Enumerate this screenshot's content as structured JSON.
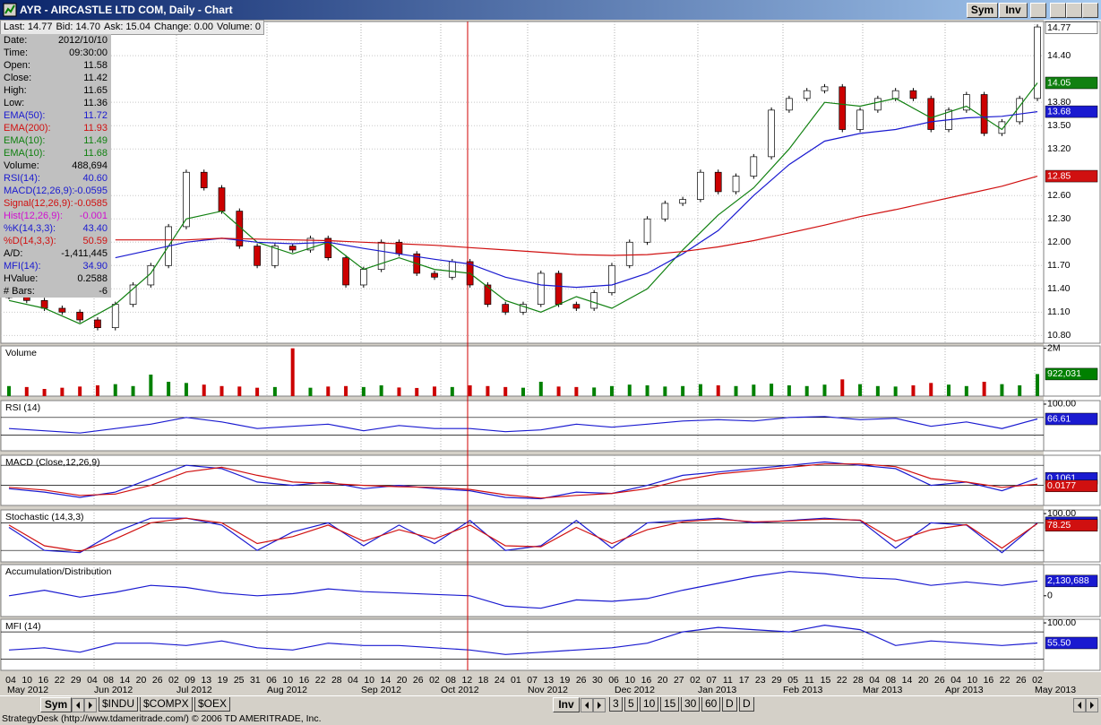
{
  "window": {
    "title": "AYR - AIRCASTLE LTD COM, Daily - Chart",
    "buttons": [
      "Sym",
      "Inv"
    ]
  },
  "quote": [
    "Last: 14.77",
    "Bid: 14.70",
    "Ask: 15.04",
    "Change: 0.00",
    "Volume: 0"
  ],
  "data_window": [
    {
      "label": "Date:",
      "value": "2012/10/10",
      "color": "#000000"
    },
    {
      "label": "Time:",
      "value": "09:30:00",
      "color": "#000000"
    },
    {
      "label": "Open:",
      "value": "11.58",
      "color": "#000000"
    },
    {
      "label": "Close:",
      "value": "11.42",
      "color": "#000000"
    },
    {
      "label": "High:",
      "value": "11.65",
      "color": "#000000"
    },
    {
      "label": "Low:",
      "value": "11.36",
      "color": "#000000"
    },
    {
      "label": "EMA(50):",
      "value": "11.72",
      "color": "#1a1ad0"
    },
    {
      "label": "EMA(200):",
      "value": "11.93",
      "color": "#d01010"
    },
    {
      "label": "EMA(10):",
      "value": "11.49",
      "color": "#108010"
    },
    {
      "label": "EMA(10):",
      "value": "11.68",
      "color": "#108010"
    },
    {
      "label": "Volume:",
      "value": "488,694",
      "color": "#000000"
    },
    {
      "label": "RSI(14):",
      "value": "40.60",
      "color": "#1a1ad0"
    },
    {
      "label": "MACD(12,26,9):",
      "value": "-0.0595",
      "color": "#1a1ad0"
    },
    {
      "label": "Signal(12,26,9):",
      "value": "-0.0585",
      "color": "#d01010"
    },
    {
      "label": "Hist(12,26,9):",
      "value": "-0.001",
      "color": "#d010d0"
    },
    {
      "label": "%K(14,3,3):",
      "value": "43.40",
      "color": "#1a1ad0"
    },
    {
      "label": "%D(14,3,3):",
      "value": "50.59",
      "color": "#d01010"
    },
    {
      "label": "A/D:",
      "value": "-1,411,445",
      "color": "#000000"
    },
    {
      "label": "MFI(14):",
      "value": "34.90",
      "color": "#1a1ad0"
    },
    {
      "label": "HValue:",
      "value": "0.2588",
      "color": "#000000"
    },
    {
      "label": "# Bars:",
      "value": "-6",
      "color": "#000000"
    }
  ],
  "chart_data": [
    {
      "type": "candlestick",
      "ylim": [
        10.7,
        14.84
      ],
      "up_color": "#ffffff",
      "down_color": "#cc0000",
      "yticks": [
        {
          "value": 14.4,
          "label": "14.40"
        },
        {
          "value": 13.8,
          "label": "13.80"
        },
        {
          "value": 13.5,
          "label": "13.50"
        },
        {
          "value": 13.2,
          "label": "13.20"
        },
        {
          "value": 12.6,
          "label": "12.60"
        },
        {
          "value": 12.3,
          "label": "12.30"
        },
        {
          "value": 12.0,
          "label": "12.00"
        },
        {
          "value": 11.7,
          "label": "11.70"
        },
        {
          "value": 11.4,
          "label": "11.40"
        },
        {
          "value": 11.1,
          "label": "11.10"
        },
        {
          "value": 10.8,
          "label": "10.80"
        }
      ],
      "values": [
        11.3,
        11.25,
        11.15,
        11.1,
        11.0,
        10.9,
        11.2,
        11.45,
        11.7,
        12.2,
        12.9,
        12.7,
        12.4,
        11.95,
        11.7,
        11.95,
        11.9,
        12.05,
        11.8,
        11.45,
        11.65,
        12.0,
        11.85,
        11.6,
        11.55,
        11.75,
        11.45,
        11.2,
        11.1,
        11.2,
        11.6,
        11.2,
        11.15,
        11.35,
        11.7,
        12.0,
        12.3,
        12.5,
        12.55,
        12.9,
        12.65,
        12.85,
        13.1,
        13.7,
        13.85,
        13.95,
        14.0,
        13.45,
        13.7,
        13.85,
        13.95,
        13.85,
        13.45,
        13.7,
        13.9,
        13.4,
        13.55,
        13.85,
        14.77
      ],
      "series": [
        {
          "color": "#108010",
          "values": [
            11.25,
            11.15,
            10.95,
            11.2,
            11.6,
            12.3,
            12.4,
            12.0,
            11.85,
            12.0,
            11.65,
            11.8,
            11.65,
            11.6,
            11.25,
            11.1,
            11.3,
            11.15,
            11.4,
            11.9,
            12.35,
            12.7,
            13.2,
            13.8,
            13.75,
            13.85,
            13.6,
            13.75,
            13.45,
            14.05
          ]
        },
        {
          "color": "#1a1ad0",
          "values": [
            null,
            null,
            null,
            11.8,
            11.9,
            12.0,
            12.05,
            12.0,
            11.98,
            12.0,
            11.92,
            11.85,
            11.78,
            11.72,
            11.55,
            11.45,
            11.42,
            11.45,
            11.6,
            11.85,
            12.15,
            12.6,
            13.0,
            13.3,
            13.4,
            13.45,
            13.55,
            13.6,
            13.62,
            13.68
          ]
        },
        {
          "color": "#d01010",
          "values": [
            null,
            null,
            null,
            12.03,
            12.03,
            12.03,
            12.05,
            12.04,
            12.03,
            12.02,
            12.0,
            11.98,
            11.96,
            11.93,
            11.9,
            11.87,
            11.84,
            11.83,
            11.84,
            11.88,
            11.94,
            12.02,
            12.12,
            12.22,
            12.33,
            12.42,
            12.52,
            12.62,
            12.72,
            12.85
          ]
        }
      ]
    },
    {
      "type": "bar",
      "title": "Volume",
      "ylim": [
        0,
        2100000
      ],
      "yticks": [
        {
          "value": 2000000,
          "label": "2M"
        }
      ],
      "up_color": "#008000",
      "down_color": "#cc0000",
      "values": [
        420000,
        380000,
        300000,
        350000,
        400000,
        450000,
        500000,
        420000,
        900000,
        600000,
        550000,
        480000,
        420000,
        400000,
        350000,
        380000,
        2000000,
        350000,
        400000,
        420000,
        380000,
        450000,
        360000,
        340000,
        400000,
        380000,
        450000,
        420000,
        380000,
        350000,
        600000,
        400000,
        380000,
        360000,
        420000,
        480000,
        450000,
        400000,
        420000,
        500000,
        450000,
        420000,
        480000,
        520000,
        450000,
        420000,
        480000,
        700000,
        500000,
        420000,
        400000,
        450000,
        550000,
        480000,
        420000,
        600000,
        500000,
        450000,
        922031
      ],
      "value_labels": [
        null,
        null,
        null,
        null,
        null,
        null,
        null,
        null,
        null,
        null,
        null,
        null,
        null,
        null,
        null,
        null,
        null,
        null,
        null,
        null,
        null,
        null,
        null,
        null,
        null,
        null,
        null,
        null,
        null,
        null,
        null,
        null,
        null,
        null,
        null,
        null,
        null,
        null,
        null,
        null,
        null,
        null,
        null,
        null,
        null,
        null,
        null,
        null,
        null,
        null,
        null,
        null,
        null,
        null,
        null,
        null,
        null,
        null,
        "922,031"
      ]
    },
    {
      "type": "line",
      "title": "RSI (14)",
      "ylim": [
        -5,
        108
      ],
      "yticks": [
        {
          "value": 100,
          "label": "100.00"
        }
      ],
      "levels": [
        30,
        70
      ],
      "series": [
        {
          "color": "#1a1ad0",
          "values": [
            45,
            40,
            35,
            45,
            55,
            70,
            60,
            45,
            50,
            55,
            40,
            52,
            45,
            45,
            38,
            42,
            55,
            48,
            55,
            62,
            65,
            62,
            70,
            72,
            65,
            68,
            50,
            60,
            45,
            66.61
          ]
        }
      ]
    },
    {
      "type": "line",
      "title": "MACD (Close,12,26,9)",
      "ylim": [
        -0.3,
        0.45
      ],
      "levels": [
        0,
        0.3
      ],
      "series": [
        {
          "color": "#1a1ad0",
          "values": [
            -0.05,
            -0.1,
            -0.18,
            -0.1,
            0.1,
            0.3,
            0.25,
            0.05,
            0.0,
            0.05,
            -0.05,
            0.0,
            -0.05,
            -0.08,
            -0.18,
            -0.2,
            -0.1,
            -0.12,
            0.0,
            0.15,
            0.2,
            0.25,
            0.3,
            0.35,
            0.3,
            0.25,
            0.0,
            0.05,
            -0.08,
            0.1061
          ]
        },
        {
          "color": "#d01010",
          "values": [
            -0.03,
            -0.07,
            -0.15,
            -0.13,
            0.0,
            0.2,
            0.27,
            0.15,
            0.05,
            0.03,
            0.0,
            -0.02,
            -0.03,
            -0.06,
            -0.14,
            -0.19,
            -0.15,
            -0.12,
            -0.05,
            0.08,
            0.17,
            0.22,
            0.27,
            0.32,
            0.32,
            0.28,
            0.1,
            0.05,
            -0.03,
            0.0177
          ]
        }
      ]
    },
    {
      "type": "line",
      "title": "Stochastic (14,3,3)",
      "ylim": [
        -5,
        108
      ],
      "yticks": [
        {
          "value": 100,
          "label": "100.00"
        }
      ],
      "levels": [
        20,
        80
      ],
      "series": [
        {
          "color": "#1a1ad0",
          "values": [
            70,
            20,
            15,
            60,
            90,
            90,
            75,
            20,
            60,
            80,
            30,
            75,
            35,
            85,
            20,
            30,
            85,
            25,
            80,
            85,
            90,
            80,
            85,
            90,
            85,
            25,
            80,
            75,
            15,
            80
          ]
        },
        {
          "color": "#d01010",
          "values": [
            75,
            30,
            18,
            45,
            80,
            90,
            80,
            35,
            50,
            75,
            40,
            65,
            45,
            75,
            30,
            28,
            70,
            35,
            65,
            82,
            88,
            82,
            84,
            88,
            86,
            40,
            65,
            76,
            25,
            78.25
          ]
        }
      ]
    },
    {
      "type": "line",
      "title": "Accumulation/Distribution",
      "ylim": [
        -3000000,
        4500000
      ],
      "yticks": [
        0
      ],
      "series": [
        {
          "color": "#1a1ad0",
          "values": [
            0,
            800000,
            -200000,
            500000,
            1500000,
            1200000,
            400000,
            0,
            300000,
            1000000,
            600000,
            400000,
            200000,
            0,
            -1500000,
            -1800000,
            -600000,
            -800000,
            -400000,
            800000,
            1800000,
            2800000,
            3500000,
            3200000,
            2600000,
            2400000,
            1500000,
            2000000,
            1500000,
            2130688
          ],
          "value_labels": [
            null,
            null,
            null,
            null,
            null,
            null,
            null,
            null,
            null,
            null,
            null,
            null,
            null,
            null,
            null,
            null,
            null,
            null,
            null,
            null,
            null,
            null,
            null,
            null,
            null,
            null,
            null,
            null,
            null,
            "2,130,688"
          ]
        }
      ]
    },
    {
      "type": "line",
      "title": "MFI (14)",
      "ylim": [
        -5,
        108
      ],
      "yticks": [
        {
          "value": 100,
          "label": "100.00"
        }
      ],
      "levels": [
        20,
        80
      ],
      "series": [
        {
          "color": "#1a1ad0",
          "values": [
            40,
            45,
            35,
            55,
            55,
            50,
            60,
            45,
            40,
            55,
            50,
            50,
            45,
            40,
            30,
            35,
            40,
            45,
            55,
            80,
            90,
            85,
            80,
            95,
            85,
            50,
            60,
            55,
            50,
            55.5
          ],
          "value_labels": [
            null,
            null,
            null,
            null,
            null,
            null,
            null,
            null,
            null,
            null,
            null,
            null,
            null,
            null,
            null,
            null,
            null,
            null,
            null,
            null,
            null,
            null,
            null,
            null,
            null,
            null,
            null,
            null,
            null,
            "55.50"
          ]
        }
      ]
    }
  ],
  "x_axis": {
    "days": [
      "04",
      "10",
      "16",
      "22",
      "29",
      "04",
      "08",
      "14",
      "20",
      "26",
      "02",
      "09",
      "13",
      "19",
      "25",
      "31",
      "06",
      "10",
      "16",
      "22",
      "28",
      "04",
      "10",
      "14",
      "20",
      "26",
      "02",
      "08",
      "12",
      "18",
      "24",
      "01",
      "07",
      "13",
      "19",
      "26",
      "30",
      "06",
      "10",
      "16",
      "20",
      "27",
      "02",
      "07",
      "11",
      "17",
      "23",
      "29",
      "05",
      "11",
      "15",
      "22",
      "28",
      "04",
      "08",
      "14",
      "20",
      "26",
      "04",
      "10",
      "16",
      "22",
      "26",
      "02"
    ],
    "months": [
      "May 2012",
      "Jun 2012",
      "Jul 2012",
      "Aug 2012",
      "Sep 2012",
      "Oct 2012",
      "Nov 2012",
      "Dec 2012",
      "Jan 2013",
      "Feb 2013",
      "Mar 2013",
      "Apr 2013",
      "May 2013"
    ]
  },
  "tabs": {
    "left": [
      "Sym",
      "$INDU",
      "$COMPX",
      "$OEX"
    ],
    "right": [
      "Inv",
      "3",
      "5",
      "10",
      "15",
      "30",
      "60",
      "D",
      "D"
    ]
  },
  "status": "StrategyDesk (http://www.tdameritrade.com/) © 2006 TD AMERITRADE, Inc."
}
